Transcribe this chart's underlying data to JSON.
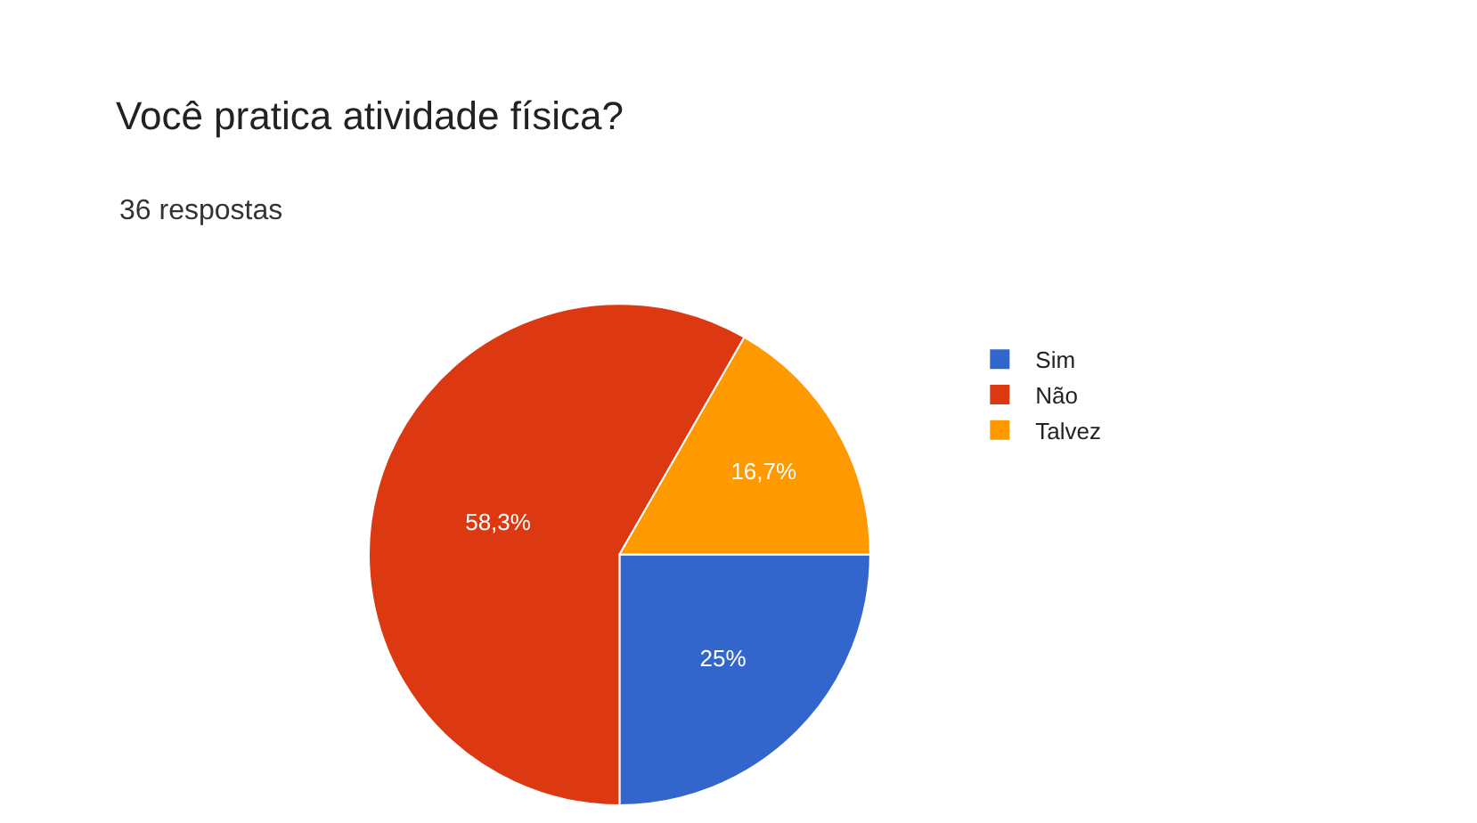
{
  "chart_data": {
    "type": "pie",
    "title": "Você pratica atividade física?",
    "subtitle": "36 respostas",
    "categories": [
      "Sim",
      "Não",
      "Talvez"
    ],
    "values": [
      25,
      58.3,
      16.7
    ],
    "colors": [
      "#3366cc",
      "#dc3912",
      "#ff9900"
    ],
    "value_labels": [
      "25%",
      "58,3%",
      "16,7%"
    ],
    "legend": "top right"
  }
}
